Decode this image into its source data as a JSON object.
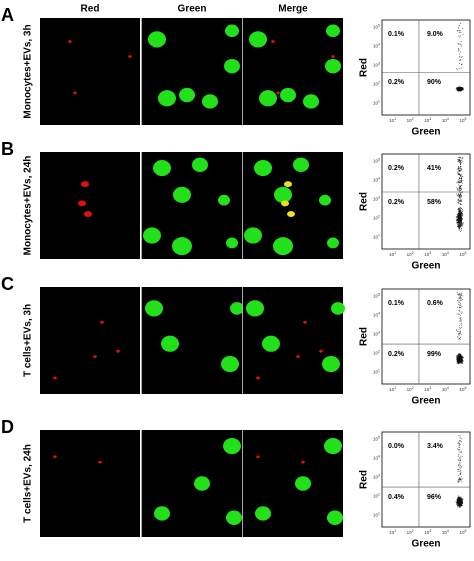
{
  "column_headers": [
    "Red",
    "Green",
    "Merge"
  ],
  "axis_ticks": {
    "base": "10",
    "exponents": [
      "1",
      "2",
      "3",
      "4",
      "5"
    ]
  },
  "panels": [
    {
      "letter": "A",
      "label": "Monocytes+EVs, 3h",
      "y_axis": "Red",
      "x_axis": "Green",
      "quadrants": {
        "upper_left": "0.1%",
        "upper_right": "9.0%",
        "lower_left": "0.2%",
        "lower_right": "90%"
      }
    },
    {
      "letter": "B",
      "label": "Monocytes+EVs, 24h",
      "y_axis": "Red",
      "x_axis": "Green",
      "quadrants": {
        "upper_left": "0.2%",
        "upper_right": "41%",
        "lower_left": "0.2%",
        "lower_right": "58%"
      }
    },
    {
      "letter": "C",
      "label": "T cells+EVs, 3h",
      "y_axis": "Red",
      "x_axis": "Green",
      "quadrants": {
        "upper_left": "0.1%",
        "upper_right": "0.6%",
        "lower_left": "0.2%",
        "lower_right": "99%"
      }
    },
    {
      "letter": "D",
      "label": "T cells+EVs, 24h",
      "y_axis": "Red",
      "x_axis": "Green",
      "quadrants": {
        "upper_left": "0.0%",
        "upper_right": "3.4%",
        "lower_left": "0.4%",
        "lower_right": "96%"
      }
    }
  ]
}
